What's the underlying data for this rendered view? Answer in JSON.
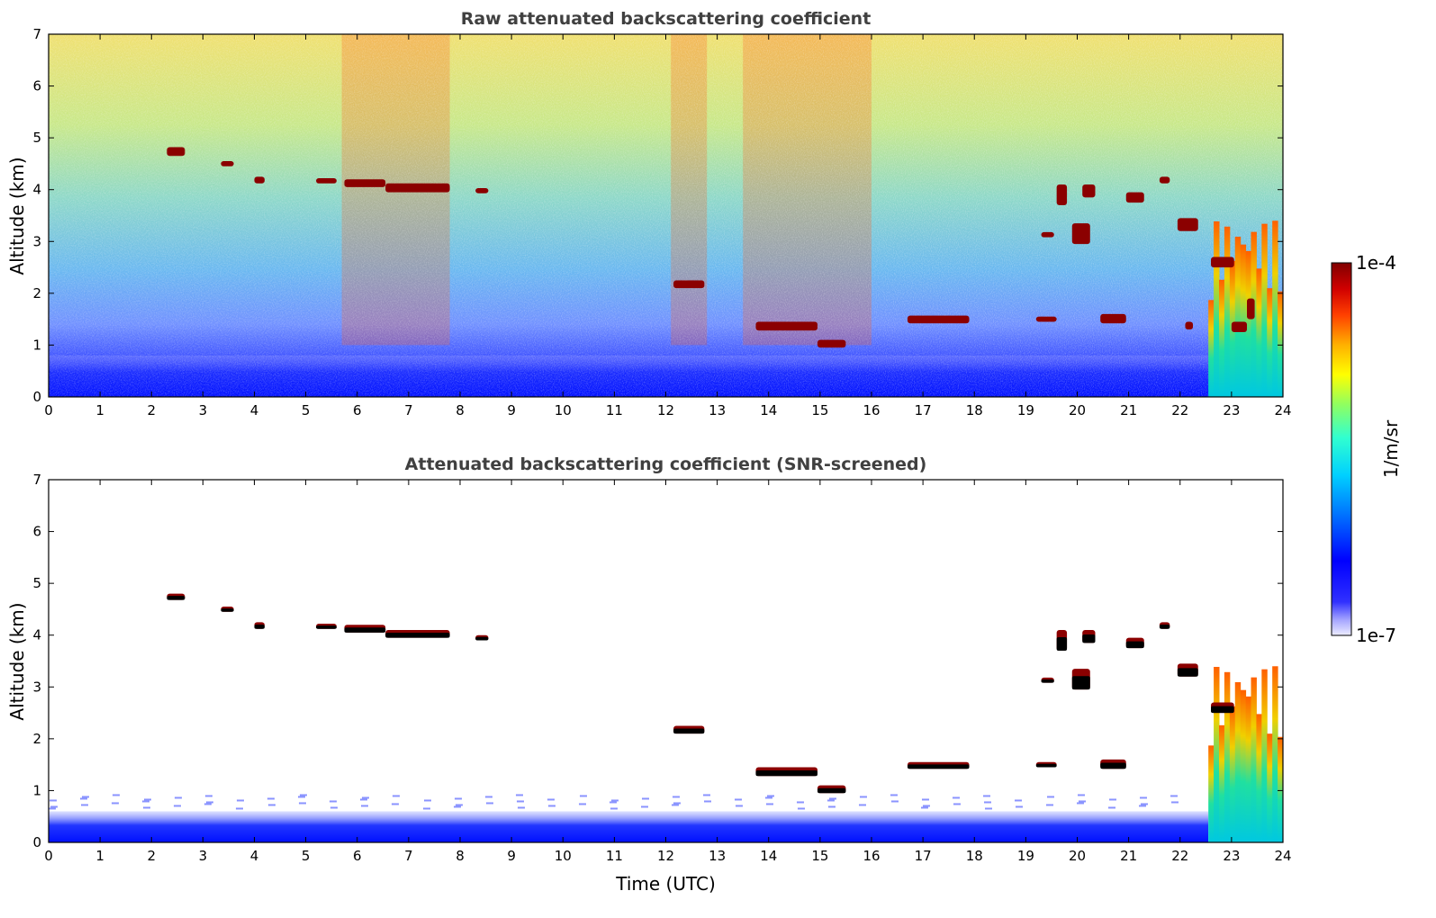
{
  "chart_data": [
    {
      "type": "heatmap",
      "title": "Raw attenuated backscattering coefficient",
      "xlabel": "",
      "ylabel": "Altitude (km)",
      "xlim": [
        0,
        24
      ],
      "ylim": [
        0,
        7
      ],
      "xticks": [
        0,
        1,
        2,
        3,
        4,
        5,
        6,
        7,
        8,
        9,
        10,
        11,
        12,
        13,
        14,
        15,
        16,
        17,
        18,
        19,
        20,
        21,
        22,
        23,
        24
      ],
      "yticks": [
        0,
        1,
        2,
        3,
        4,
        5,
        6,
        7
      ],
      "cloud_layers": [
        {
          "x": [
            2.3,
            2.65
          ],
          "y": [
            4.65,
            4.82
          ]
        },
        {
          "x": [
            3.35,
            3.6
          ],
          "y": [
            4.45,
            4.55
          ]
        },
        {
          "x": [
            4.0,
            4.2
          ],
          "y": [
            4.12,
            4.25
          ]
        },
        {
          "x": [
            5.2,
            5.6
          ],
          "y": [
            4.12,
            4.22
          ]
        },
        {
          "x": [
            5.75,
            6.55
          ],
          "y": [
            4.05,
            4.2
          ]
        },
        {
          "x": [
            6.55,
            7.8
          ],
          "y": [
            3.95,
            4.12
          ]
        },
        {
          "x": [
            8.3,
            8.55
          ],
          "y": [
            3.93,
            4.03
          ]
        },
        {
          "x": [
            12.15,
            12.75
          ],
          "y": [
            2.1,
            2.25
          ]
        },
        {
          "x": [
            13.75,
            14.95
          ],
          "y": [
            1.28,
            1.45
          ]
        },
        {
          "x": [
            14.95,
            15.5
          ],
          "y": [
            0.95,
            1.1
          ]
        },
        {
          "x": [
            16.7,
            17.9
          ],
          "y": [
            1.42,
            1.57
          ]
        },
        {
          "x": [
            19.2,
            19.6
          ],
          "y": [
            1.45,
            1.55
          ]
        },
        {
          "x": [
            20.45,
            20.95
          ],
          "y": [
            1.42,
            1.6
          ]
        },
        {
          "x": [
            19.3,
            19.55
          ],
          "y": [
            3.08,
            3.18
          ]
        },
        {
          "x": [
            19.6,
            19.8
          ],
          "y": [
            3.7,
            4.1
          ]
        },
        {
          "x": [
            19.9,
            20.25
          ],
          "y": [
            2.95,
            3.35
          ]
        },
        {
          "x": [
            20.1,
            20.35
          ],
          "y": [
            3.85,
            4.1
          ]
        },
        {
          "x": [
            20.95,
            21.3
          ],
          "y": [
            3.75,
            3.95
          ]
        },
        {
          "x": [
            21.6,
            21.8
          ],
          "y": [
            4.12,
            4.25
          ]
        },
        {
          "x": [
            21.95,
            22.35
          ],
          "y": [
            3.2,
            3.45
          ]
        },
        {
          "x": [
            22.6,
            23.05
          ],
          "y": [
            2.5,
            2.7
          ]
        },
        {
          "x": [
            22.1,
            22.25
          ],
          "y": [
            1.3,
            1.45
          ]
        },
        {
          "x": [
            23.0,
            23.3
          ],
          "y": [
            1.25,
            1.45
          ]
        },
        {
          "x": [
            23.3,
            23.45
          ],
          "y": [
            1.5,
            1.9
          ]
        }
      ],
      "noise_bands_high_signal": [
        {
          "x": [
            5.7,
            7.8
          ]
        },
        {
          "x": [
            12.1,
            12.8
          ]
        },
        {
          "x": [
            13.5,
            16.0
          ]
        }
      ],
      "dense_precipitation_region": {
        "x": [
          22.55,
          24.0
        ],
        "y": [
          0,
          3.4
        ]
      }
    },
    {
      "type": "heatmap",
      "title": "Attenuated backscattering coefficient (SNR-screened)",
      "xlabel": "Time (UTC)",
      "ylabel": "Altitude (km)",
      "xlim": [
        0,
        24
      ],
      "ylim": [
        0,
        7
      ],
      "xticks": [
        0,
        1,
        2,
        3,
        4,
        5,
        6,
        7,
        8,
        9,
        10,
        11,
        12,
        13,
        14,
        15,
        16,
        17,
        18,
        19,
        20,
        21,
        22,
        23,
        24
      ],
      "yticks": [
        0,
        1,
        2,
        3,
        4,
        5,
        6,
        7
      ],
      "cloud_layers": [
        {
          "x": [
            2.3,
            2.65
          ],
          "y": [
            4.68,
            4.8
          ]
        },
        {
          "x": [
            3.35,
            3.6
          ],
          "y": [
            4.45,
            4.55
          ]
        },
        {
          "x": [
            4.0,
            4.2
          ],
          "y": [
            4.12,
            4.25
          ]
        },
        {
          "x": [
            5.2,
            5.6
          ],
          "y": [
            4.12,
            4.22
          ]
        },
        {
          "x": [
            5.75,
            6.55
          ],
          "y": [
            4.05,
            4.2
          ]
        },
        {
          "x": [
            6.55,
            7.8
          ],
          "y": [
            3.95,
            4.1
          ]
        },
        {
          "x": [
            8.3,
            8.55
          ],
          "y": [
            3.9,
            4.0
          ]
        },
        {
          "x": [
            12.15,
            12.75
          ],
          "y": [
            2.1,
            2.25
          ]
        },
        {
          "x": [
            13.75,
            14.95
          ],
          "y": [
            1.28,
            1.45
          ]
        },
        {
          "x": [
            14.95,
            15.5
          ],
          "y": [
            0.95,
            1.1
          ]
        },
        {
          "x": [
            16.7,
            17.9
          ],
          "y": [
            1.42,
            1.55
          ]
        },
        {
          "x": [
            19.2,
            19.6
          ],
          "y": [
            1.45,
            1.55
          ]
        },
        {
          "x": [
            20.45,
            20.95
          ],
          "y": [
            1.42,
            1.6
          ]
        },
        {
          "x": [
            19.3,
            19.55
          ],
          "y": [
            3.08,
            3.18
          ]
        },
        {
          "x": [
            19.6,
            19.8
          ],
          "y": [
            3.7,
            4.1
          ]
        },
        {
          "x": [
            19.9,
            20.25
          ],
          "y": [
            2.95,
            3.35
          ]
        },
        {
          "x": [
            20.1,
            20.35
          ],
          "y": [
            3.85,
            4.1
          ]
        },
        {
          "x": [
            20.95,
            21.3
          ],
          "y": [
            3.75,
            3.95
          ]
        },
        {
          "x": [
            21.6,
            21.8
          ],
          "y": [
            4.12,
            4.25
          ]
        },
        {
          "x": [
            21.95,
            22.35
          ],
          "y": [
            3.2,
            3.45
          ]
        },
        {
          "x": [
            22.6,
            23.05
          ],
          "y": [
            2.5,
            2.7
          ]
        }
      ],
      "boundary_layer_top_km": 0.6,
      "dense_precipitation_region": {
        "x": [
          22.55,
          24.0
        ],
        "y": [
          0,
          3.4
        ]
      }
    }
  ],
  "colorbar": {
    "min_label": "1e-7",
    "max_label": "1e-4",
    "label": "1/m/sr",
    "scale": "log",
    "colormap": "jet"
  },
  "colors": {
    "title": "#404040",
    "cloud": "#8b0000",
    "cloud_core": "#000000"
  }
}
